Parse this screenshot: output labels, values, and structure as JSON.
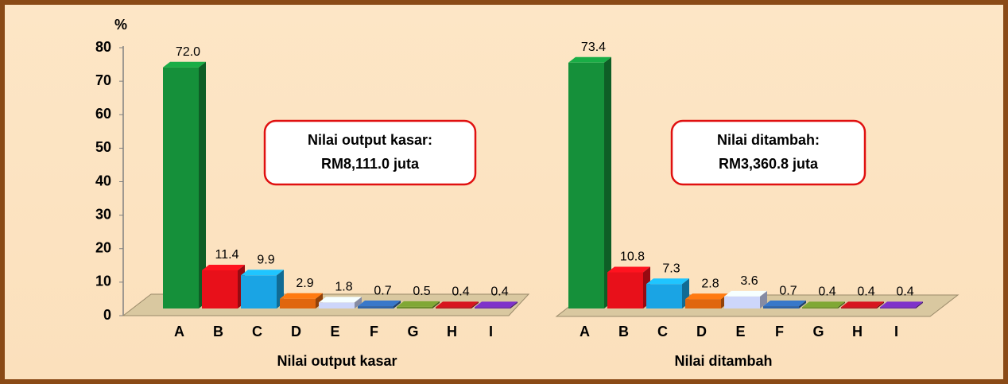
{
  "chart_data": {
    "type": "bar",
    "y_label": "%",
    "ylim": [
      0,
      80
    ],
    "yticks": [
      0,
      10,
      20,
      30,
      40,
      50,
      60,
      70,
      80
    ],
    "categories": [
      "A",
      "B",
      "C",
      "D",
      "E",
      "F",
      "G",
      "H",
      "I"
    ],
    "colors": [
      "#15903a",
      "#e8101a",
      "#1aa4e4",
      "#e0660e",
      "#cdd6fa",
      "#2f64a8",
      "#6b8c2c",
      "#b3121a",
      "#6a2aa8"
    ],
    "groups": [
      {
        "name": "Nilai output kasar",
        "values": [
          72.0,
          11.4,
          9.9,
          2.9,
          1.8,
          0.7,
          0.5,
          0.4,
          0.4
        ],
        "value_labels": [
          "72.0",
          "11.4",
          "9.9",
          "2.9",
          "1.8",
          "0.7",
          "0.5",
          "0.4",
          "0.4"
        ],
        "annotation": [
          "Nilai output kasar:",
          "RM8,111.0 juta"
        ]
      },
      {
        "name": "Nilai ditambah",
        "values": [
          73.4,
          10.8,
          7.3,
          2.8,
          3.6,
          0.7,
          0.4,
          0.4,
          0.4
        ],
        "value_labels": [
          "73.4",
          "10.8",
          "7.3",
          "2.8",
          "3.6",
          "0.7",
          "0.4",
          "0.4",
          "0.4"
        ],
        "annotation": [
          "Nilai ditambah:",
          "RM3,360.8 juta"
        ]
      }
    ]
  }
}
